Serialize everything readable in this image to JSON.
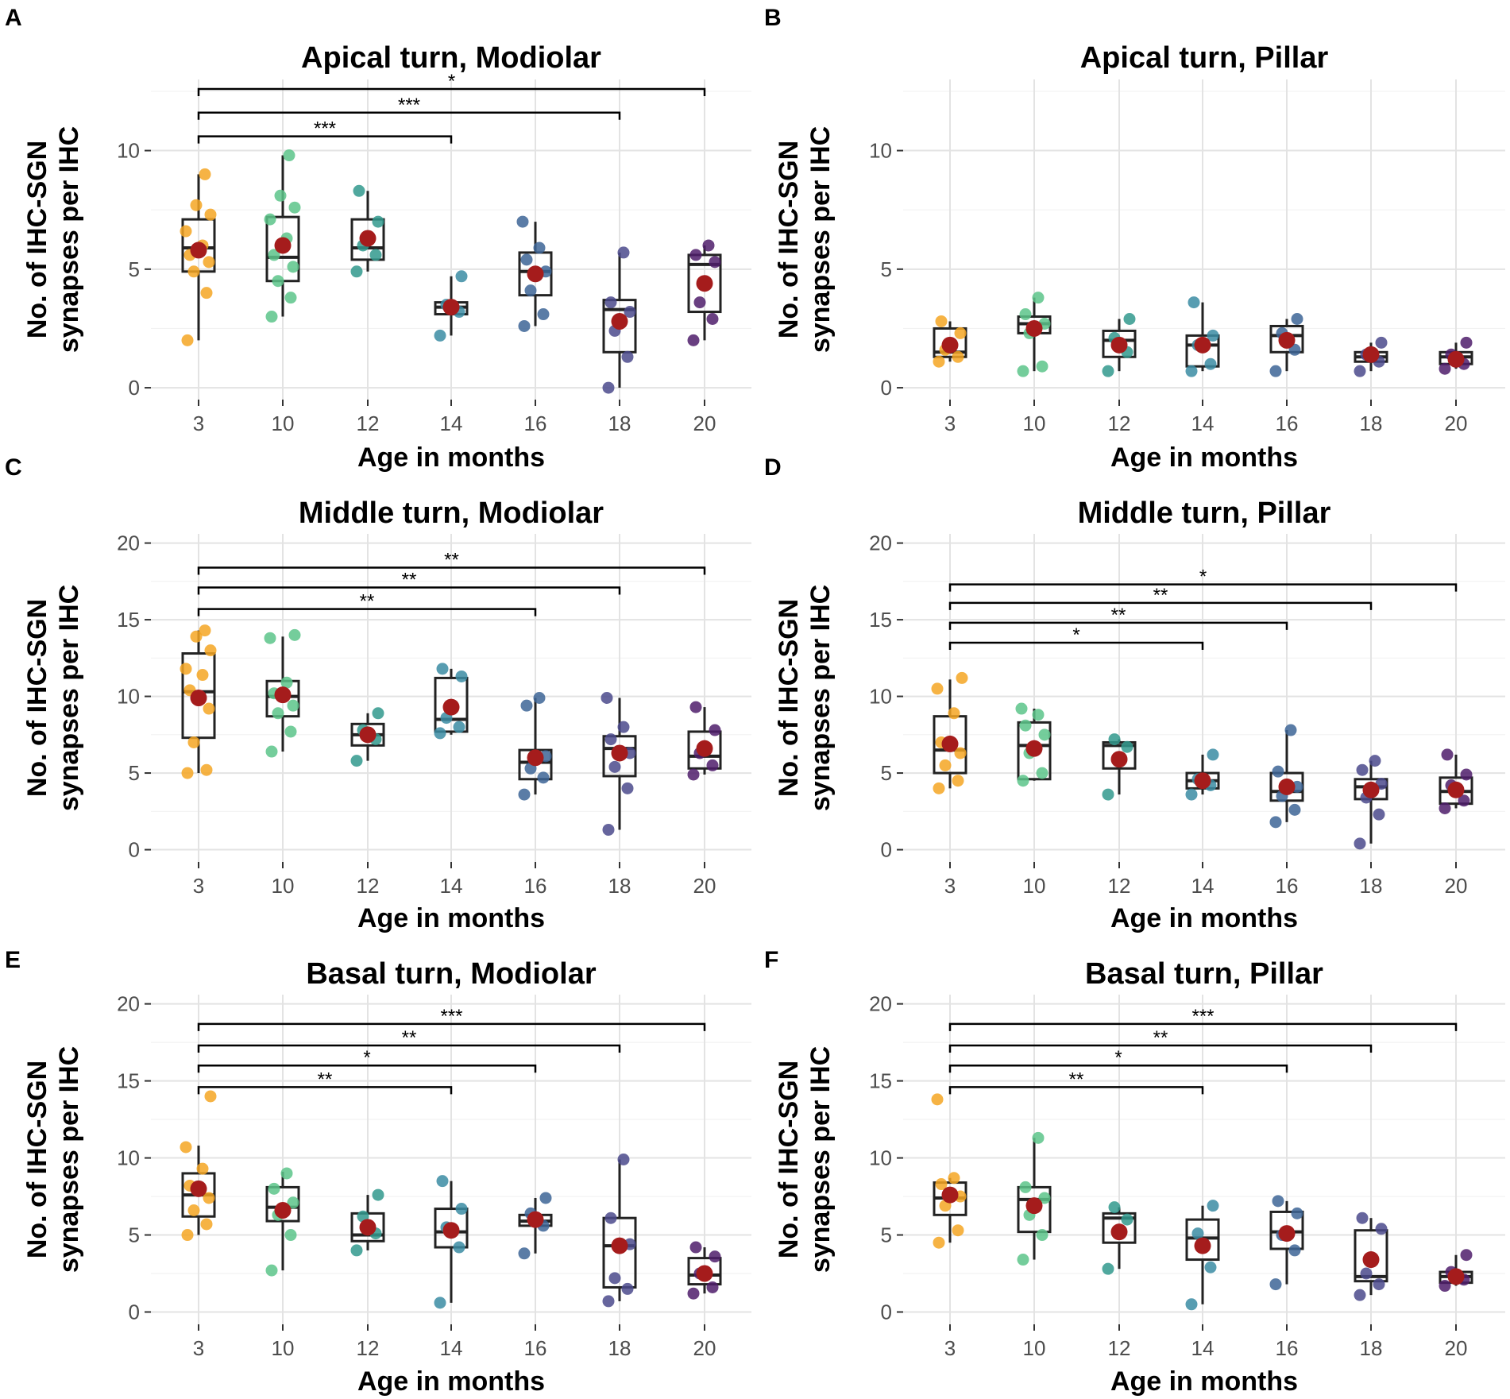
{
  "colors": {
    "3": "#f5a623",
    "10": "#5cc48a",
    "12": "#31998d",
    "14": "#3b8ca3",
    "16": "#3d6596",
    "18": "#4b4a8c",
    "20": "#4f1d6b",
    "mean": "#a51c1c"
  },
  "common": {
    "xlabel": "Age in months",
    "ylabel_line1": "No. of IHC-SGN",
    "ylabel_line2": "synapses per IHC"
  },
  "chart_data": [
    {
      "id": "A",
      "letter": "A",
      "type": "box-strip",
      "title": "Apical turn, Modiolar",
      "xlabel": "Age in months",
      "ylabel": "No. of IHC-SGN synapses per IHC",
      "categories": [
        "3",
        "10",
        "12",
        "14",
        "16",
        "18",
        "20"
      ],
      "ylim": [
        -0.5,
        13
      ],
      "yticks": [
        0,
        5,
        10
      ],
      "minor": [
        2.5,
        7.5,
        12.5
      ],
      "boxes": [
        {
          "q1": 4.9,
          "median": 5.9,
          "q3": 7.1,
          "low": 2.0,
          "high": 9.0,
          "mean": 5.8,
          "points": [
            2.0,
            4.0,
            4.9,
            5.3,
            5.6,
            6.0,
            6.6,
            7.3,
            7.7,
            9.0
          ]
        },
        {
          "q1": 4.5,
          "median": 5.5,
          "q3": 7.2,
          "low": 3.0,
          "high": 9.8,
          "mean": 6.0,
          "points": [
            3.0,
            3.8,
            4.5,
            5.1,
            5.6,
            6.3,
            7.1,
            7.6,
            8.1,
            9.8
          ]
        },
        {
          "q1": 5.4,
          "median": 5.9,
          "q3": 7.1,
          "low": 4.9,
          "high": 8.3,
          "mean": 6.3,
          "points": [
            4.9,
            5.6,
            6.0,
            7.0,
            8.3
          ]
        },
        {
          "q1": 3.1,
          "median": 3.4,
          "q3": 3.6,
          "low": 2.2,
          "high": 4.7,
          "mean": 3.4,
          "points": [
            2.2,
            3.2,
            3.5,
            4.7
          ]
        },
        {
          "q1": 3.9,
          "median": 4.9,
          "q3": 5.7,
          "low": 2.6,
          "high": 7.0,
          "mean": 4.8,
          "points": [
            2.6,
            3.1,
            4.1,
            4.9,
            5.4,
            5.9,
            7.0
          ]
        },
        {
          "q1": 1.5,
          "median": 3.3,
          "q3": 3.7,
          "low": 0.0,
          "high": 5.7,
          "mean": 2.8,
          "points": [
            0.0,
            1.3,
            2.4,
            3.2,
            3.6,
            5.7
          ]
        },
        {
          "q1": 3.2,
          "median": 5.2,
          "q3": 5.6,
          "low": 2.0,
          "high": 6.0,
          "mean": 4.4,
          "points": [
            2.0,
            2.9,
            3.6,
            5.3,
            5.6,
            6.0
          ]
        }
      ],
      "sig": [
        {
          "from": "3",
          "to": "20",
          "y": 12.6,
          "label": "*"
        },
        {
          "from": "3",
          "to": "18",
          "y": 11.6,
          "label": "***"
        },
        {
          "from": "3",
          "to": "14",
          "y": 10.6,
          "label": "***"
        }
      ]
    },
    {
      "id": "B",
      "letter": "B",
      "type": "box-strip",
      "title": "Apical turn, Pillar",
      "xlabel": "Age in months",
      "ylabel": "No. of IHC-SGN synapses per IHC",
      "categories": [
        "3",
        "10",
        "12",
        "14",
        "16",
        "18",
        "20"
      ],
      "ylim": [
        -0.5,
        13
      ],
      "yticks": [
        0,
        5,
        10
      ],
      "minor": [
        2.5,
        7.5,
        12.5
      ],
      "boxes": [
        {
          "q1": 1.3,
          "median": 1.5,
          "q3": 2.5,
          "low": 1.1,
          "high": 2.8,
          "mean": 1.8,
          "points": [
            1.1,
            1.3,
            1.6,
            2.3,
            2.8
          ]
        },
        {
          "q1": 2.3,
          "median": 2.7,
          "q3": 3.0,
          "low": 0.7,
          "high": 3.8,
          "mean": 2.5,
          "points": [
            0.7,
            0.9,
            2.3,
            2.7,
            3.1,
            3.8
          ]
        },
        {
          "q1": 1.3,
          "median": 2.0,
          "q3": 2.4,
          "low": 0.7,
          "high": 2.9,
          "mean": 1.8,
          "points": [
            0.7,
            1.5,
            2.1,
            2.9
          ]
        },
        {
          "q1": 0.9,
          "median": 1.8,
          "q3": 2.2,
          "low": 0.7,
          "high": 3.6,
          "mean": 1.8,
          "points": [
            0.7,
            1.0,
            1.8,
            2.2,
            3.6
          ]
        },
        {
          "q1": 1.5,
          "median": 2.2,
          "q3": 2.6,
          "low": 0.7,
          "high": 2.9,
          "mean": 2.0,
          "points": [
            0.7,
            1.6,
            2.3,
            2.9
          ]
        },
        {
          "q1": 1.1,
          "median": 1.3,
          "q3": 1.5,
          "low": 0.7,
          "high": 1.9,
          "mean": 1.4,
          "points": [
            0.7,
            1.1,
            1.4,
            1.9
          ]
        },
        {
          "q1": 1.0,
          "median": 1.3,
          "q3": 1.5,
          "low": 0.8,
          "high": 1.9,
          "mean": 1.2,
          "points": [
            0.8,
            1.0,
            1.4,
            1.9
          ]
        }
      ],
      "sig": []
    },
    {
      "id": "C",
      "letter": "C",
      "type": "box-strip",
      "title": "Middle turn, Modiolar",
      "xlabel": "Age in months",
      "ylabel": "No. of IHC-SGN synapses per IHC",
      "categories": [
        "3",
        "10",
        "12",
        "14",
        "16",
        "18",
        "20"
      ],
      "ylim": [
        -0.8,
        20.6
      ],
      "yticks": [
        0,
        5,
        10,
        15,
        20
      ],
      "minor": [
        2.5,
        7.5,
        12.5,
        17.5
      ],
      "boxes": [
        {
          "q1": 7.3,
          "median": 10.3,
          "q3": 12.8,
          "low": 5.0,
          "high": 14.3,
          "mean": 9.9,
          "points": [
            5.0,
            5.2,
            7.0,
            9.2,
            10.4,
            11.4,
            11.8,
            13.0,
            13.9,
            14.3
          ]
        },
        {
          "q1": 8.7,
          "median": 10.0,
          "q3": 11.0,
          "low": 6.4,
          "high": 13.9,
          "mean": 10.1,
          "points": [
            6.4,
            7.7,
            8.9,
            9.4,
            10.2,
            10.9,
            13.8,
            14.0
          ]
        },
        {
          "q1": 6.8,
          "median": 7.5,
          "q3": 8.2,
          "low": 5.8,
          "high": 8.9,
          "mean": 7.5,
          "points": [
            5.8,
            7.2,
            7.8,
            8.9
          ]
        },
        {
          "q1": 7.7,
          "median": 8.5,
          "q3": 11.2,
          "low": 7.5,
          "high": 11.8,
          "mean": 9.3,
          "points": [
            7.6,
            8.0,
            8.6,
            11.3,
            11.8
          ]
        },
        {
          "q1": 4.6,
          "median": 5.7,
          "q3": 6.5,
          "low": 3.6,
          "high": 9.9,
          "mean": 6.0,
          "points": [
            3.6,
            4.7,
            5.3,
            6.1,
            9.4,
            9.9
          ]
        },
        {
          "q1": 4.8,
          "median": 6.6,
          "q3": 7.4,
          "low": 1.3,
          "high": 9.9,
          "mean": 6.3,
          "points": [
            1.3,
            4.0,
            5.4,
            6.3,
            7.2,
            8.0,
            9.9
          ]
        },
        {
          "q1": 5.3,
          "median": 6.1,
          "q3": 7.7,
          "low": 4.9,
          "high": 9.3,
          "mean": 6.6,
          "points": [
            4.9,
            5.5,
            6.3,
            7.8,
            9.3
          ]
        }
      ],
      "sig": [
        {
          "from": "3",
          "to": "20",
          "y": 18.4,
          "label": "**"
        },
        {
          "from": "3",
          "to": "18",
          "y": 17.1,
          "label": "**"
        },
        {
          "from": "3",
          "to": "16",
          "y": 15.7,
          "label": "**"
        }
      ]
    },
    {
      "id": "D",
      "letter": "D",
      "type": "box-strip",
      "title": "Middle turn, Pillar",
      "xlabel": "Age in months",
      "ylabel": "No. of IHC-SGN synapses per IHC",
      "categories": [
        "3",
        "10",
        "12",
        "14",
        "16",
        "18",
        "20"
      ],
      "ylim": [
        -0.8,
        20.6
      ],
      "yticks": [
        0,
        5,
        10,
        15,
        20
      ],
      "minor": [
        2.5,
        7.5,
        12.5,
        17.5
      ],
      "boxes": [
        {
          "q1": 5.0,
          "median": 6.5,
          "q3": 8.7,
          "low": 4.0,
          "high": 11.1,
          "mean": 6.9,
          "points": [
            4.0,
            4.5,
            5.5,
            6.3,
            7.0,
            8.9,
            10.5,
            11.2
          ]
        },
        {
          "q1": 4.6,
          "median": 6.8,
          "q3": 8.3,
          "low": 4.5,
          "high": 9.2,
          "mean": 6.6,
          "points": [
            4.5,
            5.0,
            6.3,
            7.5,
            8.1,
            8.8,
            9.2
          ]
        },
        {
          "q1": 5.3,
          "median": 6.8,
          "q3": 7.0,
          "low": 3.6,
          "high": 7.2,
          "mean": 5.9,
          "points": [
            3.6,
            6.7,
            7.2
          ]
        },
        {
          "q1": 4.0,
          "median": 4.5,
          "q3": 5.0,
          "low": 3.6,
          "high": 6.2,
          "mean": 4.5,
          "points": [
            3.6,
            4.2,
            4.6,
            6.2
          ]
        },
        {
          "q1": 3.2,
          "median": 3.8,
          "q3": 5.0,
          "low": 1.8,
          "high": 7.8,
          "mean": 4.1,
          "points": [
            1.8,
            2.6,
            3.5,
            4.1,
            5.1,
            7.8
          ]
        },
        {
          "q1": 3.3,
          "median": 4.1,
          "q3": 4.6,
          "low": 0.4,
          "high": 5.8,
          "mean": 3.9,
          "points": [
            0.4,
            2.3,
            3.4,
            4.3,
            5.2,
            5.8
          ]
        },
        {
          "q1": 3.0,
          "median": 3.8,
          "q3": 4.7,
          "low": 2.7,
          "high": 6.2,
          "mean": 3.9,
          "points": [
            2.7,
            3.2,
            4.2,
            4.9,
            6.2
          ]
        }
      ],
      "sig": [
        {
          "from": "3",
          "to": "20",
          "y": 17.3,
          "label": "*"
        },
        {
          "from": "3",
          "to": "18",
          "y": 16.1,
          "label": "**"
        },
        {
          "from": "3",
          "to": "16",
          "y": 14.8,
          "label": "**"
        },
        {
          "from": "3",
          "to": "14",
          "y": 13.5,
          "label": "*"
        }
      ]
    },
    {
      "id": "E",
      "letter": "E",
      "type": "box-strip",
      "title": "Basal turn, Modiolar",
      "xlabel": "Age in months",
      "ylabel": "No. of IHC-SGN synapses per IHC",
      "categories": [
        "3",
        "10",
        "12",
        "14",
        "16",
        "18",
        "20"
      ],
      "ylim": [
        -0.8,
        20.6
      ],
      "yticks": [
        0,
        5,
        10,
        15,
        20
      ],
      "minor": [
        2.5,
        7.5,
        12.5,
        17.5
      ],
      "boxes": [
        {
          "q1": 6.2,
          "median": 7.6,
          "q3": 9.0,
          "low": 5.0,
          "high": 10.8,
          "mean": 8.0,
          "points": [
            5.0,
            5.7,
            6.6,
            7.4,
            8.2,
            9.3,
            10.7,
            14.0
          ]
        },
        {
          "q1": 5.9,
          "median": 6.8,
          "q3": 8.1,
          "low": 2.7,
          "high": 9.1,
          "mean": 6.6,
          "points": [
            2.7,
            5.0,
            6.3,
            7.1,
            8.0,
            9.0
          ]
        },
        {
          "q1": 4.6,
          "median": 5.0,
          "q3": 6.4,
          "low": 4.0,
          "high": 7.6,
          "mean": 5.5,
          "points": [
            4.0,
            5.1,
            6.2,
            7.6
          ]
        },
        {
          "q1": 4.2,
          "median": 5.2,
          "q3": 6.7,
          "low": 0.6,
          "high": 8.5,
          "mean": 5.3,
          "points": [
            0.6,
            4.2,
            5.5,
            6.7,
            8.5
          ]
        },
        {
          "q1": 5.6,
          "median": 5.9,
          "q3": 6.3,
          "low": 3.8,
          "high": 7.4,
          "mean": 6.0,
          "points": [
            3.8,
            5.6,
            6.4,
            7.4
          ]
        },
        {
          "q1": 1.6,
          "median": 4.3,
          "q3": 6.1,
          "low": 0.7,
          "high": 9.9,
          "mean": 4.3,
          "points": [
            0.7,
            1.5,
            2.2,
            4.4,
            6.1,
            9.9
          ]
        },
        {
          "q1": 1.8,
          "median": 2.4,
          "q3": 3.5,
          "low": 1.2,
          "high": 4.2,
          "mean": 2.5,
          "points": [
            1.2,
            1.6,
            2.5,
            3.6,
            4.2
          ]
        }
      ],
      "sig": [
        {
          "from": "3",
          "to": "20",
          "y": 18.7,
          "label": "***"
        },
        {
          "from": "3",
          "to": "18",
          "y": 17.3,
          "label": "**"
        },
        {
          "from": "3",
          "to": "16",
          "y": 16.0,
          "label": "*"
        },
        {
          "from": "3",
          "to": "14",
          "y": 14.6,
          "label": "**"
        }
      ]
    },
    {
      "id": "F",
      "letter": "F",
      "type": "box-strip",
      "title": "Basal turn, Pillar",
      "xlabel": "Age in months",
      "ylabel": "No. of IHC-SGN synapses per IHC",
      "categories": [
        "3",
        "10",
        "12",
        "14",
        "16",
        "18",
        "20"
      ],
      "ylim": [
        -0.8,
        20.6
      ],
      "yticks": [
        0,
        5,
        10,
        15,
        20
      ],
      "minor": [
        2.5,
        7.5,
        12.5,
        17.5
      ],
      "boxes": [
        {
          "q1": 6.3,
          "median": 7.4,
          "q3": 8.4,
          "low": 4.5,
          "high": 8.7,
          "mean": 7.6,
          "points": [
            4.5,
            5.3,
            6.9,
            7.5,
            8.3,
            8.7,
            13.8
          ]
        },
        {
          "q1": 5.2,
          "median": 7.3,
          "q3": 8.1,
          "low": 3.4,
          "high": 11.3,
          "mean": 6.9,
          "points": [
            3.4,
            5.0,
            6.3,
            7.4,
            8.1,
            11.3
          ]
        },
        {
          "q1": 4.5,
          "median": 6.1,
          "q3": 6.4,
          "low": 2.8,
          "high": 6.8,
          "mean": 5.2,
          "points": [
            2.8,
            6.0,
            6.8
          ]
        },
        {
          "q1": 3.4,
          "median": 4.8,
          "q3": 6.0,
          "low": 0.5,
          "high": 6.9,
          "mean": 4.3,
          "points": [
            0.5,
            2.9,
            5.1,
            6.9
          ]
        },
        {
          "q1": 4.1,
          "median": 5.2,
          "q3": 6.5,
          "low": 1.8,
          "high": 7.2,
          "mean": 5.1,
          "points": [
            1.8,
            4.0,
            5.0,
            6.4,
            7.2
          ]
        },
        {
          "q1": 2.0,
          "median": 2.3,
          "q3": 5.3,
          "low": 1.1,
          "high": 6.1,
          "mean": 3.4,
          "points": [
            1.1,
            1.8,
            2.5,
            5.4,
            6.1
          ]
        },
        {
          "q1": 1.9,
          "median": 2.3,
          "q3": 2.6,
          "low": 1.7,
          "high": 3.7,
          "mean": 2.3,
          "points": [
            1.7,
            2.1,
            2.6,
            3.7
          ]
        }
      ],
      "sig": [
        {
          "from": "3",
          "to": "20",
          "y": 18.7,
          "label": "***"
        },
        {
          "from": "3",
          "to": "18",
          "y": 17.3,
          "label": "**"
        },
        {
          "from": "3",
          "to": "16",
          "y": 16.0,
          "label": "*"
        },
        {
          "from": "3",
          "to": "14",
          "y": 14.6,
          "label": "**"
        }
      ]
    }
  ]
}
